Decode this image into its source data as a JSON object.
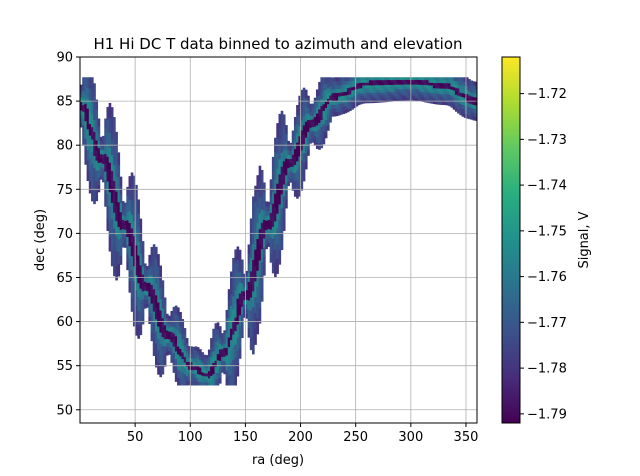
{
  "chart_data": {
    "type": "heatmap",
    "title": "H1 Hi DC T data binned to azimuth and elevation",
    "xlabel": "ra (deg)",
    "ylabel": "dec (deg)",
    "xlim": [
      0,
      360
    ],
    "ylim": [
      48.5,
      90
    ],
    "xticks": [
      50,
      100,
      150,
      200,
      250,
      300,
      350
    ],
    "yticks": [
      50,
      55,
      60,
      65,
      70,
      75,
      80,
      85,
      90
    ],
    "grid": true,
    "colormap": "viridis",
    "colorbar": {
      "label": "Signal, V",
      "vmin": -1.792,
      "vmax": -1.712,
      "ticks": [
        -1.79,
        -1.78,
        -1.77,
        -1.76,
        -1.75,
        -1.74,
        -1.73,
        -1.72
      ],
      "tick_labels": [
        "−1.79",
        "−1.78",
        "−1.77",
        "−1.76",
        "−1.75",
        "−1.74",
        "−1.73",
        "−1.72"
      ]
    },
    "band": {
      "description": "sky track of binned samples",
      "center_track": [
        {
          "ra": 0,
          "dec": 84.5
        },
        {
          "ra": 20,
          "dec": 78.5
        },
        {
          "ra": 40,
          "dec": 71
        },
        {
          "ra": 60,
          "dec": 64
        },
        {
          "ra": 80,
          "dec": 58.5
        },
        {
          "ra": 100,
          "dec": 55
        },
        {
          "ra": 115,
          "dec": 54
        },
        {
          "ra": 130,
          "dec": 56.5
        },
        {
          "ra": 150,
          "dec": 63
        },
        {
          "ra": 170,
          "dec": 71
        },
        {
          "ra": 190,
          "dec": 78
        },
        {
          "ra": 210,
          "dec": 82.5
        },
        {
          "ra": 230,
          "dec": 85.5
        },
        {
          "ra": 260,
          "dec": 87
        },
        {
          "ra": 300,
          "dec": 87.3
        },
        {
          "ra": 330,
          "dec": 86.8
        },
        {
          "ra": 360,
          "dec": 85
        }
      ],
      "value_range": [
        -1.792,
        -1.752
      ]
    }
  }
}
